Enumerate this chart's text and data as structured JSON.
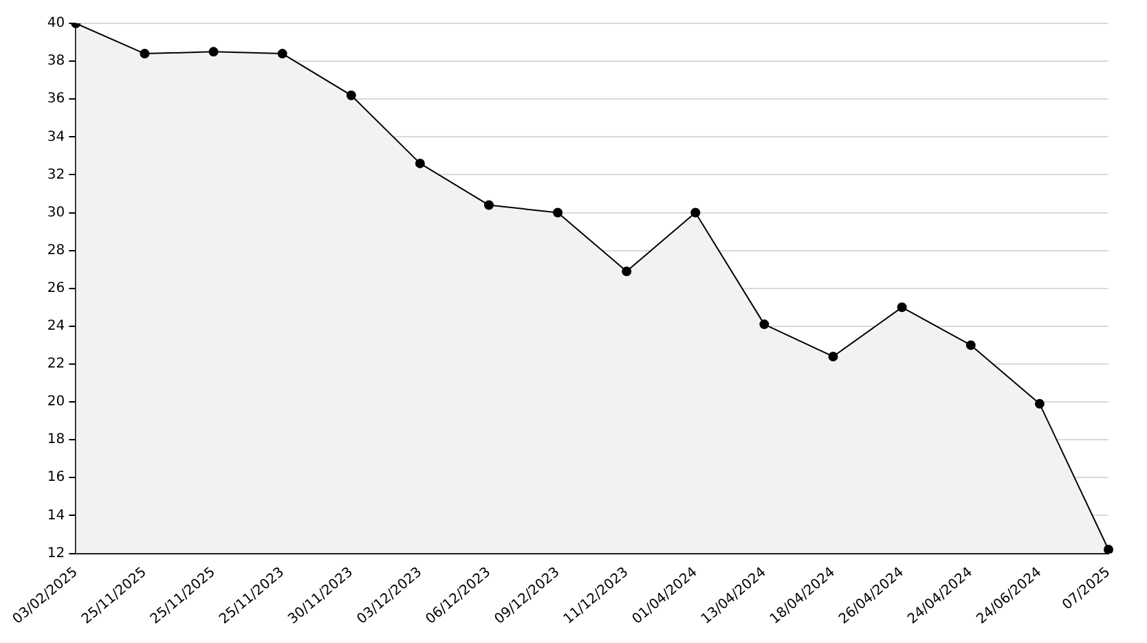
{
  "chart_data": {
    "type": "area",
    "categories": [
      "03/02/2025",
      "25/11/2025",
      "25/11/2025",
      "25/11/2023",
      "30/11/2023",
      "03/12/2023",
      "06/12/2023",
      "09/12/2023",
      "11/12/2023",
      "01/04/2024",
      "13/04/2024",
      "18/04/2024",
      "26/04/2024",
      "24/04/2024",
      "24/06/2024",
      "07/2025"
    ],
    "series": [
      {
        "color": "#000000",
        "values": [
          40,
          38.4,
          38.5,
          38.4,
          36.2,
          32.6,
          30.4,
          30,
          26.9,
          30,
          24.1,
          22.4,
          25,
          23,
          19.9,
          12.2
        ]
      }
    ],
    "ylim": [
      12,
      40
    ],
    "yticks": [
      12,
      14,
      16,
      18,
      20,
      22,
      24,
      26,
      28,
      30,
      32,
      34,
      36,
      38,
      40
    ],
    "grid": "y",
    "legend": false,
    "marker": "circle",
    "line_style": "solid"
  }
}
